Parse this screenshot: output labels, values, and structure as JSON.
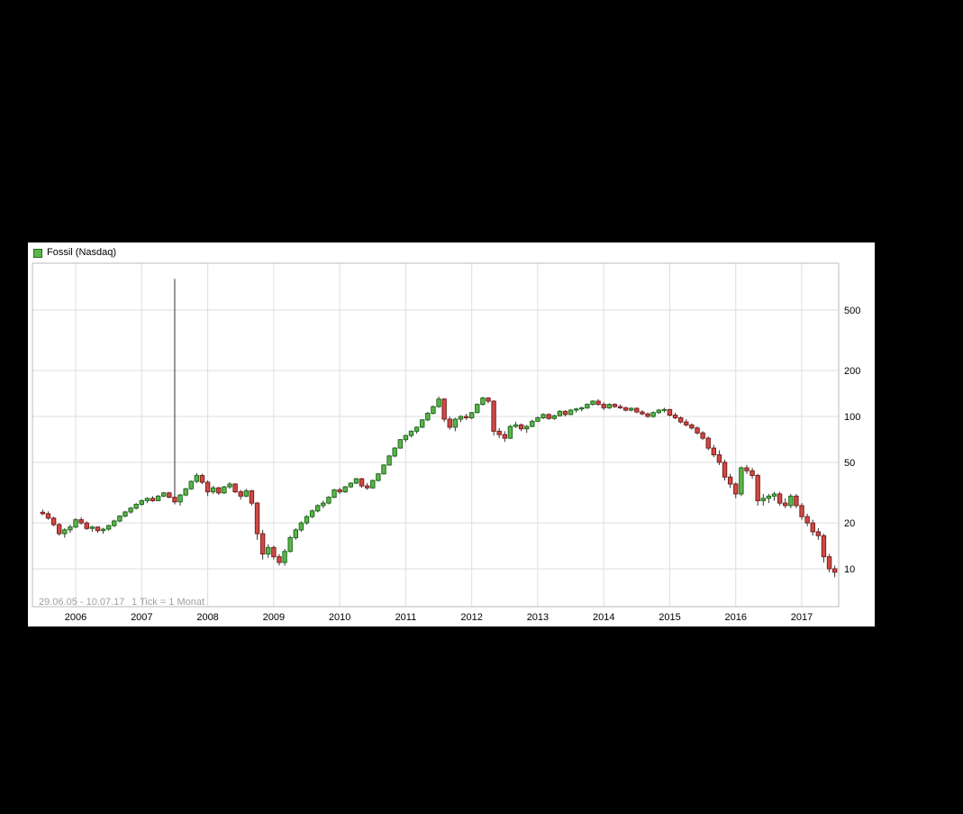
{
  "chart": {
    "legend": {
      "label": "Fossil (Nasdaq)",
      "swatch_color": "#4db848",
      "swatch_border": "#1a5c1a"
    },
    "footer": {
      "range": "29.06.05 - 10.07.17",
      "tick_info": "1 Tick = 1 Monat"
    }
  },
  "chart_data": {
    "type": "candlestick",
    "title": "Fossil (Nasdaq)",
    "x_labels": [
      "2006",
      "2007",
      "2008",
      "2009",
      "2010",
      "2011",
      "2012",
      "2013",
      "2014",
      "2015",
      "2016",
      "2017"
    ],
    "y_ticks": [
      500,
      200,
      100,
      50,
      20,
      10
    ],
    "y_scale": "log",
    "y_range": [
      5.6,
      1010
    ],
    "tick_interval": "1 month",
    "date_range": "29.06.05 - 10.07.17",
    "grid": true,
    "legend_position": "top-left",
    "colors": {
      "up_fill": "#5cb548",
      "up_stroke": "#1f6b1f",
      "down_fill": "#cf4944",
      "down_stroke": "#7a1f1f",
      "wick": "#333333",
      "grid": "#dedede",
      "border": "#bbbbbb",
      "axis_text": "#000000",
      "footer_text": "#a0a0a0",
      "panel_bg": "#ffffff",
      "page_bg": "#000000"
    },
    "candles": [
      [
        "2005-07",
        23.5,
        24.5,
        22.5,
        23.0
      ],
      [
        "2005-08",
        23.0,
        23.8,
        21.0,
        21.5
      ],
      [
        "2005-09",
        21.5,
        22.0,
        19.0,
        19.5
      ],
      [
        "2005-10",
        19.5,
        20.0,
        16.5,
        17.0
      ],
      [
        "2005-11",
        17.0,
        18.5,
        16.0,
        18.0
      ],
      [
        "2005-12",
        18.0,
        19.5,
        17.2,
        18.8
      ],
      [
        "2006-01",
        18.8,
        21.5,
        18.5,
        21.0
      ],
      [
        "2006-02",
        21.0,
        21.8,
        19.5,
        20.0
      ],
      [
        "2006-03",
        20.0,
        20.5,
        18.0,
        18.4
      ],
      [
        "2006-04",
        18.4,
        19.2,
        17.5,
        18.8
      ],
      [
        "2006-05",
        18.8,
        19.0,
        17.2,
        17.8
      ],
      [
        "2006-06",
        17.8,
        18.6,
        17.0,
        18.2
      ],
      [
        "2006-07",
        18.2,
        19.5,
        17.8,
        19.2
      ],
      [
        "2006-08",
        19.2,
        21.0,
        18.8,
        20.6
      ],
      [
        "2006-09",
        20.6,
        22.5,
        20.2,
        22.2
      ],
      [
        "2006-10",
        22.2,
        24.0,
        21.8,
        23.6
      ],
      [
        "2006-11",
        23.6,
        25.5,
        23.0,
        25.0
      ],
      [
        "2006-12",
        25.0,
        27.0,
        24.5,
        26.5
      ],
      [
        "2007-01",
        26.5,
        28.5,
        26.0,
        28.0
      ],
      [
        "2007-02",
        28.0,
        29.5,
        27.0,
        29.0
      ],
      [
        "2007-03",
        29.0,
        30.0,
        27.5,
        28.0
      ],
      [
        "2007-04",
        28.0,
        30.5,
        27.8,
        30.0
      ],
      [
        "2007-05",
        30.0,
        32.0,
        29.5,
        31.5
      ],
      [
        "2007-06",
        31.5,
        32.0,
        29.0,
        29.5
      ],
      [
        "2007-07",
        29.5,
        800.0,
        26.5,
        27.5
      ],
      [
        "2007-08",
        27.5,
        31.0,
        26.0,
        30.5
      ],
      [
        "2007-09",
        30.5,
        34.0,
        30.0,
        33.5
      ],
      [
        "2007-10",
        33.5,
        38.0,
        33.0,
        37.5
      ],
      [
        "2007-11",
        37.5,
        42.5,
        36.5,
        41.0
      ],
      [
        "2007-12",
        41.0,
        42.0,
        36.0,
        37.0
      ],
      [
        "2008-01",
        37.0,
        38.0,
        30.0,
        32.0
      ],
      [
        "2008-02",
        32.0,
        35.0,
        31.0,
        34.0
      ],
      [
        "2008-03",
        34.0,
        34.5,
        30.5,
        31.5
      ],
      [
        "2008-04",
        31.5,
        35.0,
        31.0,
        34.5
      ],
      [
        "2008-05",
        34.5,
        37.0,
        33.5,
        36.0
      ],
      [
        "2008-06",
        36.0,
        36.5,
        31.5,
        32.0
      ],
      [
        "2008-07",
        32.0,
        33.0,
        28.5,
        30.0
      ],
      [
        "2008-08",
        30.0,
        33.5,
        29.5,
        32.5
      ],
      [
        "2008-09",
        32.5,
        33.0,
        26.0,
        27.0
      ],
      [
        "2008-10",
        27.0,
        27.5,
        15.5,
        17.0
      ],
      [
        "2008-11",
        17.0,
        18.0,
        11.5,
        12.5
      ],
      [
        "2008-12",
        12.5,
        14.5,
        11.8,
        13.8
      ],
      [
        "2009-01",
        13.8,
        14.2,
        11.5,
        12.0
      ],
      [
        "2009-02",
        12.0,
        12.5,
        10.5,
        11.0
      ],
      [
        "2009-03",
        11.0,
        13.5,
        10.5,
        13.0
      ],
      [
        "2009-04",
        13.0,
        16.5,
        12.8,
        16.0
      ],
      [
        "2009-05",
        16.0,
        18.5,
        15.5,
        18.0
      ],
      [
        "2009-06",
        18.0,
        20.5,
        17.5,
        20.0
      ],
      [
        "2009-07",
        20.0,
        22.5,
        19.5,
        22.0
      ],
      [
        "2009-08",
        22.0,
        24.5,
        21.5,
        24.0
      ],
      [
        "2009-09",
        24.0,
        26.5,
        23.5,
        26.0
      ],
      [
        "2009-10",
        26.0,
        28.0,
        25.0,
        27.0
      ],
      [
        "2009-11",
        27.0,
        30.0,
        26.5,
        29.5
      ],
      [
        "2009-12",
        29.5,
        33.5,
        29.0,
        33.0
      ],
      [
        "2010-01",
        33.0,
        34.0,
        31.0,
        32.0
      ],
      [
        "2010-02",
        32.0,
        35.0,
        31.5,
        34.5
      ],
      [
        "2010-03",
        34.5,
        37.0,
        34.0,
        36.5
      ],
      [
        "2010-04",
        36.5,
        39.5,
        36.0,
        39.0
      ],
      [
        "2010-05",
        39.0,
        39.5,
        34.0,
        35.0
      ],
      [
        "2010-06",
        35.0,
        36.5,
        33.0,
        34.0
      ],
      [
        "2010-07",
        34.0,
        38.5,
        33.5,
        38.0
      ],
      [
        "2010-08",
        38.0,
        42.5,
        37.5,
        42.0
      ],
      [
        "2010-09",
        42.0,
        48.5,
        41.5,
        48.0
      ],
      [
        "2010-10",
        48.0,
        56.0,
        47.5,
        55.0
      ],
      [
        "2010-11",
        55.0,
        63.0,
        54.0,
        62.0
      ],
      [
        "2010-12",
        62.0,
        71.0,
        61.5,
        70.5
      ],
      [
        "2011-01",
        70.5,
        76.0,
        68.0,
        75.0
      ],
      [
        "2011-02",
        75.0,
        81.0,
        73.0,
        80.0
      ],
      [
        "2011-03",
        80.0,
        86.0,
        77.0,
        85.0
      ],
      [
        "2011-04",
        85.0,
        96.0,
        84.0,
        95.0
      ],
      [
        "2011-05",
        95.0,
        107.0,
        93.0,
        105.0
      ],
      [
        "2011-06",
        105.0,
        118.0,
        103.0,
        116.0
      ],
      [
        "2011-07",
        116.0,
        135.0,
        114.0,
        130.0
      ],
      [
        "2011-08",
        130.0,
        132.0,
        92.0,
        96.0
      ],
      [
        "2011-09",
        96.0,
        100.0,
        82.0,
        85.0
      ],
      [
        "2011-10",
        85.0,
        98.0,
        80.0,
        96.0
      ],
      [
        "2011-11",
        96.0,
        102.0,
        92.0,
        100.0
      ],
      [
        "2011-12",
        100.0,
        104.0,
        95.0,
        98.0
      ],
      [
        "2012-01",
        98.0,
        107.0,
        96.0,
        106.0
      ],
      [
        "2012-02",
        106.0,
        122.0,
        105.0,
        120.0
      ],
      [
        "2012-03",
        120.0,
        135.0,
        118.0,
        132.0
      ],
      [
        "2012-04",
        132.0,
        134.0,
        122.0,
        126.0
      ],
      [
        "2012-05",
        126.0,
        128.0,
        75.0,
        80.0
      ],
      [
        "2012-06",
        80.0,
        84.0,
        72.0,
        76.0
      ],
      [
        "2012-07",
        76.0,
        80.0,
        68.0,
        72.0
      ],
      [
        "2012-08",
        72.0,
        88.0,
        71.0,
        86.0
      ],
      [
        "2012-09",
        86.0,
        92.0,
        84.0,
        88.0
      ],
      [
        "2012-10",
        88.0,
        90.0,
        80.0,
        83.0
      ],
      [
        "2012-11",
        83.0,
        88.0,
        78.0,
        86.0
      ],
      [
        "2012-12",
        86.0,
        95.0,
        85.0,
        93.0
      ],
      [
        "2013-01",
        93.0,
        100.0,
        92.0,
        98.0
      ],
      [
        "2013-02",
        98.0,
        105.0,
        96.0,
        103.0
      ],
      [
        "2013-03",
        103.0,
        105.0,
        95.0,
        97.0
      ],
      [
        "2013-04",
        97.0,
        103.0,
        95.0,
        101.0
      ],
      [
        "2013-05",
        101.0,
        110.0,
        100.0,
        108.0
      ],
      [
        "2013-06",
        108.0,
        110.0,
        100.0,
        103.0
      ],
      [
        "2013-07",
        103.0,
        112.0,
        102.0,
        110.0
      ],
      [
        "2013-08",
        110.0,
        114.0,
        106.0,
        112.0
      ],
      [
        "2013-09",
        112.0,
        116.0,
        108.0,
        114.0
      ],
      [
        "2013-10",
        114.0,
        122.0,
        112.0,
        120.0
      ],
      [
        "2013-11",
        120.0,
        128.0,
        118.0,
        126.0
      ],
      [
        "2013-12",
        126.0,
        130.0,
        118.0,
        120.0
      ],
      [
        "2014-01",
        120.0,
        124.0,
        110.0,
        114.0
      ],
      [
        "2014-02",
        114.0,
        122.0,
        112.0,
        120.0
      ],
      [
        "2014-03",
        120.0,
        122.0,
        114.0,
        116.0
      ],
      [
        "2014-04",
        116.0,
        120.0,
        112.0,
        114.0
      ],
      [
        "2014-05",
        114.0,
        116.0,
        108.0,
        110.0
      ],
      [
        "2014-06",
        110.0,
        115.0,
        108.0,
        113.0
      ],
      [
        "2014-07",
        113.0,
        115.0,
        105.0,
        107.0
      ],
      [
        "2014-08",
        107.0,
        110.0,
        102.0,
        104.0
      ],
      [
        "2014-09",
        104.0,
        106.0,
        98.0,
        100.0
      ],
      [
        "2014-10",
        100.0,
        108.0,
        98.0,
        106.0
      ],
      [
        "2014-11",
        106.0,
        112.0,
        104.0,
        110.0
      ],
      [
        "2014-12",
        110.0,
        114.0,
        106.0,
        111.0
      ],
      [
        "2015-01",
        111.0,
        112.0,
        100.0,
        102.0
      ],
      [
        "2015-02",
        102.0,
        106.0,
        96.0,
        98.0
      ],
      [
        "2015-03",
        98.0,
        100.0,
        90.0,
        92.0
      ],
      [
        "2015-04",
        92.0,
        96.0,
        86.0,
        88.0
      ],
      [
        "2015-05",
        88.0,
        90.0,
        82.0,
        84.0
      ],
      [
        "2015-06",
        84.0,
        86.0,
        76.0,
        78.0
      ],
      [
        "2015-07",
        78.0,
        80.0,
        70.0,
        72.0
      ],
      [
        "2015-08",
        72.0,
        74.0,
        60.0,
        62.0
      ],
      [
        "2015-09",
        62.0,
        65.0,
        54.0,
        56.0
      ],
      [
        "2015-10",
        56.0,
        60.0,
        48.0,
        50.0
      ],
      [
        "2015-11",
        50.0,
        52.0,
        38.0,
        40.0
      ],
      [
        "2015-12",
        40.0,
        42.0,
        34.0,
        36.0
      ],
      [
        "2016-01",
        36.0,
        37.0,
        29.0,
        31.0
      ],
      [
        "2016-02",
        31.0,
        47.0,
        30.0,
        46.0
      ],
      [
        "2016-03",
        46.0,
        48.0,
        42.0,
        44.0
      ],
      [
        "2016-04",
        44.0,
        46.0,
        39.0,
        41.0
      ],
      [
        "2016-05",
        41.0,
        42.0,
        26.0,
        28.0
      ],
      [
        "2016-06",
        28.0,
        31.0,
        26.0,
        29.0
      ],
      [
        "2016-07",
        29.0,
        31.0,
        27.0,
        30.0
      ],
      [
        "2016-08",
        30.0,
        32.0,
        28.0,
        31.0
      ],
      [
        "2016-09",
        31.0,
        32.0,
        26.0,
        27.0
      ],
      [
        "2016-10",
        27.0,
        29.0,
        25.0,
        26.0
      ],
      [
        "2016-11",
        26.0,
        31.0,
        25.0,
        30.0
      ],
      [
        "2016-12",
        30.0,
        31.0,
        25.0,
        26.0
      ],
      [
        "2017-01",
        26.0,
        27.0,
        21.0,
        22.0
      ],
      [
        "2017-02",
        22.0,
        23.0,
        19.0,
        20.0
      ],
      [
        "2017-03",
        20.0,
        21.0,
        16.5,
        17.5
      ],
      [
        "2017-04",
        17.5,
        18.5,
        15.5,
        16.5
      ],
      [
        "2017-05",
        16.5,
        17.0,
        11.0,
        12.0
      ],
      [
        "2017-06",
        12.0,
        12.5,
        9.5,
        10.0
      ],
      [
        "2017-07",
        10.0,
        10.5,
        8.8,
        9.5
      ]
    ]
  }
}
